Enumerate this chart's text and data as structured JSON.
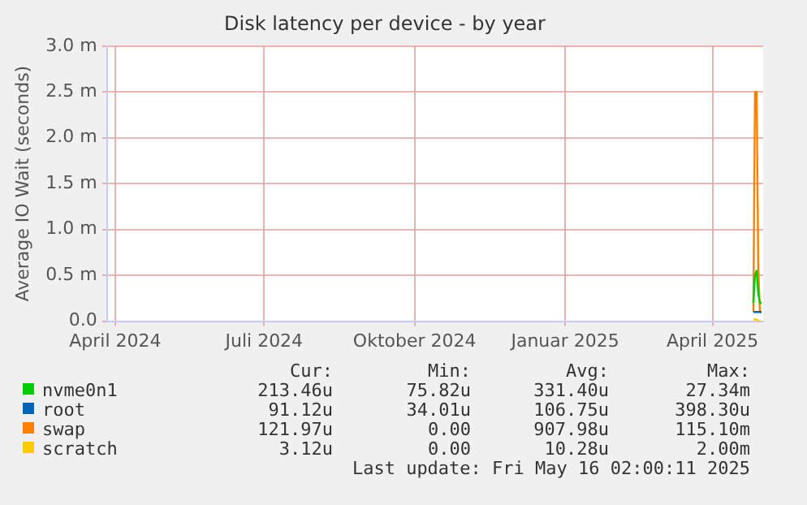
{
  "chart_data": {
    "type": "line",
    "title": "Disk latency per device - by year",
    "ylabel": "Average IO Wait (seconds)",
    "x": [
      "2025-04-26",
      "2025-04-27",
      "2025-04-28",
      "2025-04-29",
      "2025-04-30",
      "2025-05-01"
    ],
    "series": [
      {
        "name": "nvme0n1",
        "color": "#00cc00",
        "values": [
          0.2,
          0.5,
          0.55,
          0.3,
          0.2,
          0.2
        ]
      },
      {
        "name": "root",
        "color": "#0066b3",
        "values": [
          0.1,
          0.1,
          0.1,
          0.1,
          0.1,
          0.1
        ]
      },
      {
        "name": "swap",
        "color": "#ff8000",
        "values": [
          0.1,
          2.5,
          2.5,
          0.6,
          0.1,
          0.1
        ]
      },
      {
        "name": "scratch",
        "color": "#ffcc00",
        "values": [
          0.02,
          0.02,
          0.02,
          0,
          0,
          0
        ]
      }
    ],
    "xlim": [
      "2024-03-27",
      "2025-05-02"
    ],
    "xticks": [
      {
        "value": "2024-04-01",
        "label": "April 2024"
      },
      {
        "value": "2024-07-01",
        "label": "Juli 2024"
      },
      {
        "value": "2024-10-01",
        "label": "Oktober 2024"
      },
      {
        "value": "2025-01-01",
        "label": "Januar 2025"
      },
      {
        "value": "2025-04-01",
        "label": "April 2025"
      }
    ],
    "ylim": [
      0,
      3
    ],
    "yticks": [
      {
        "value": 0,
        "label": "0.0"
      },
      {
        "value": 0.5,
        "label": "0.5 m"
      },
      {
        "value": 1,
        "label": "1.0 m"
      },
      {
        "value": 1.5,
        "label": "1.5 m"
      },
      {
        "value": 2,
        "label": "2.0 m"
      },
      {
        "value": 2.5,
        "label": "2.5 m"
      },
      {
        "value": 3,
        "label": "3.0 m"
      }
    ],
    "grid": true,
    "legend": "bottom",
    "marker": "none",
    "line_style": "solid",
    "annotations": [
      "Cur:",
      "Min:",
      "Avg:",
      "Max:",
      "213.46u",
      "75.82u",
      "331.40u",
      "27.34m",
      "91.12u",
      "34.01u",
      "106.75u",
      "398.30u",
      "121.97u",
      "0.00",
      "907.98u",
      "115.10m",
      "3.12u",
      "0.00",
      "10.28u",
      "2.00m",
      "Last update: Fri May 16 02:00:11 2025"
    ]
  }
}
